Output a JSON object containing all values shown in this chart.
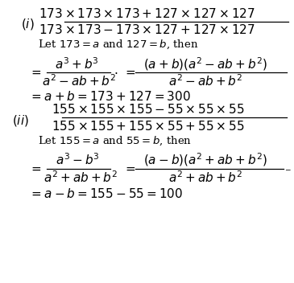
{
  "bg_color": "#ffffff",
  "figsize": [
    3.65,
    3.52
  ],
  "dpi": 100,
  "fs": 9.5,
  "fs_large": 11.0
}
